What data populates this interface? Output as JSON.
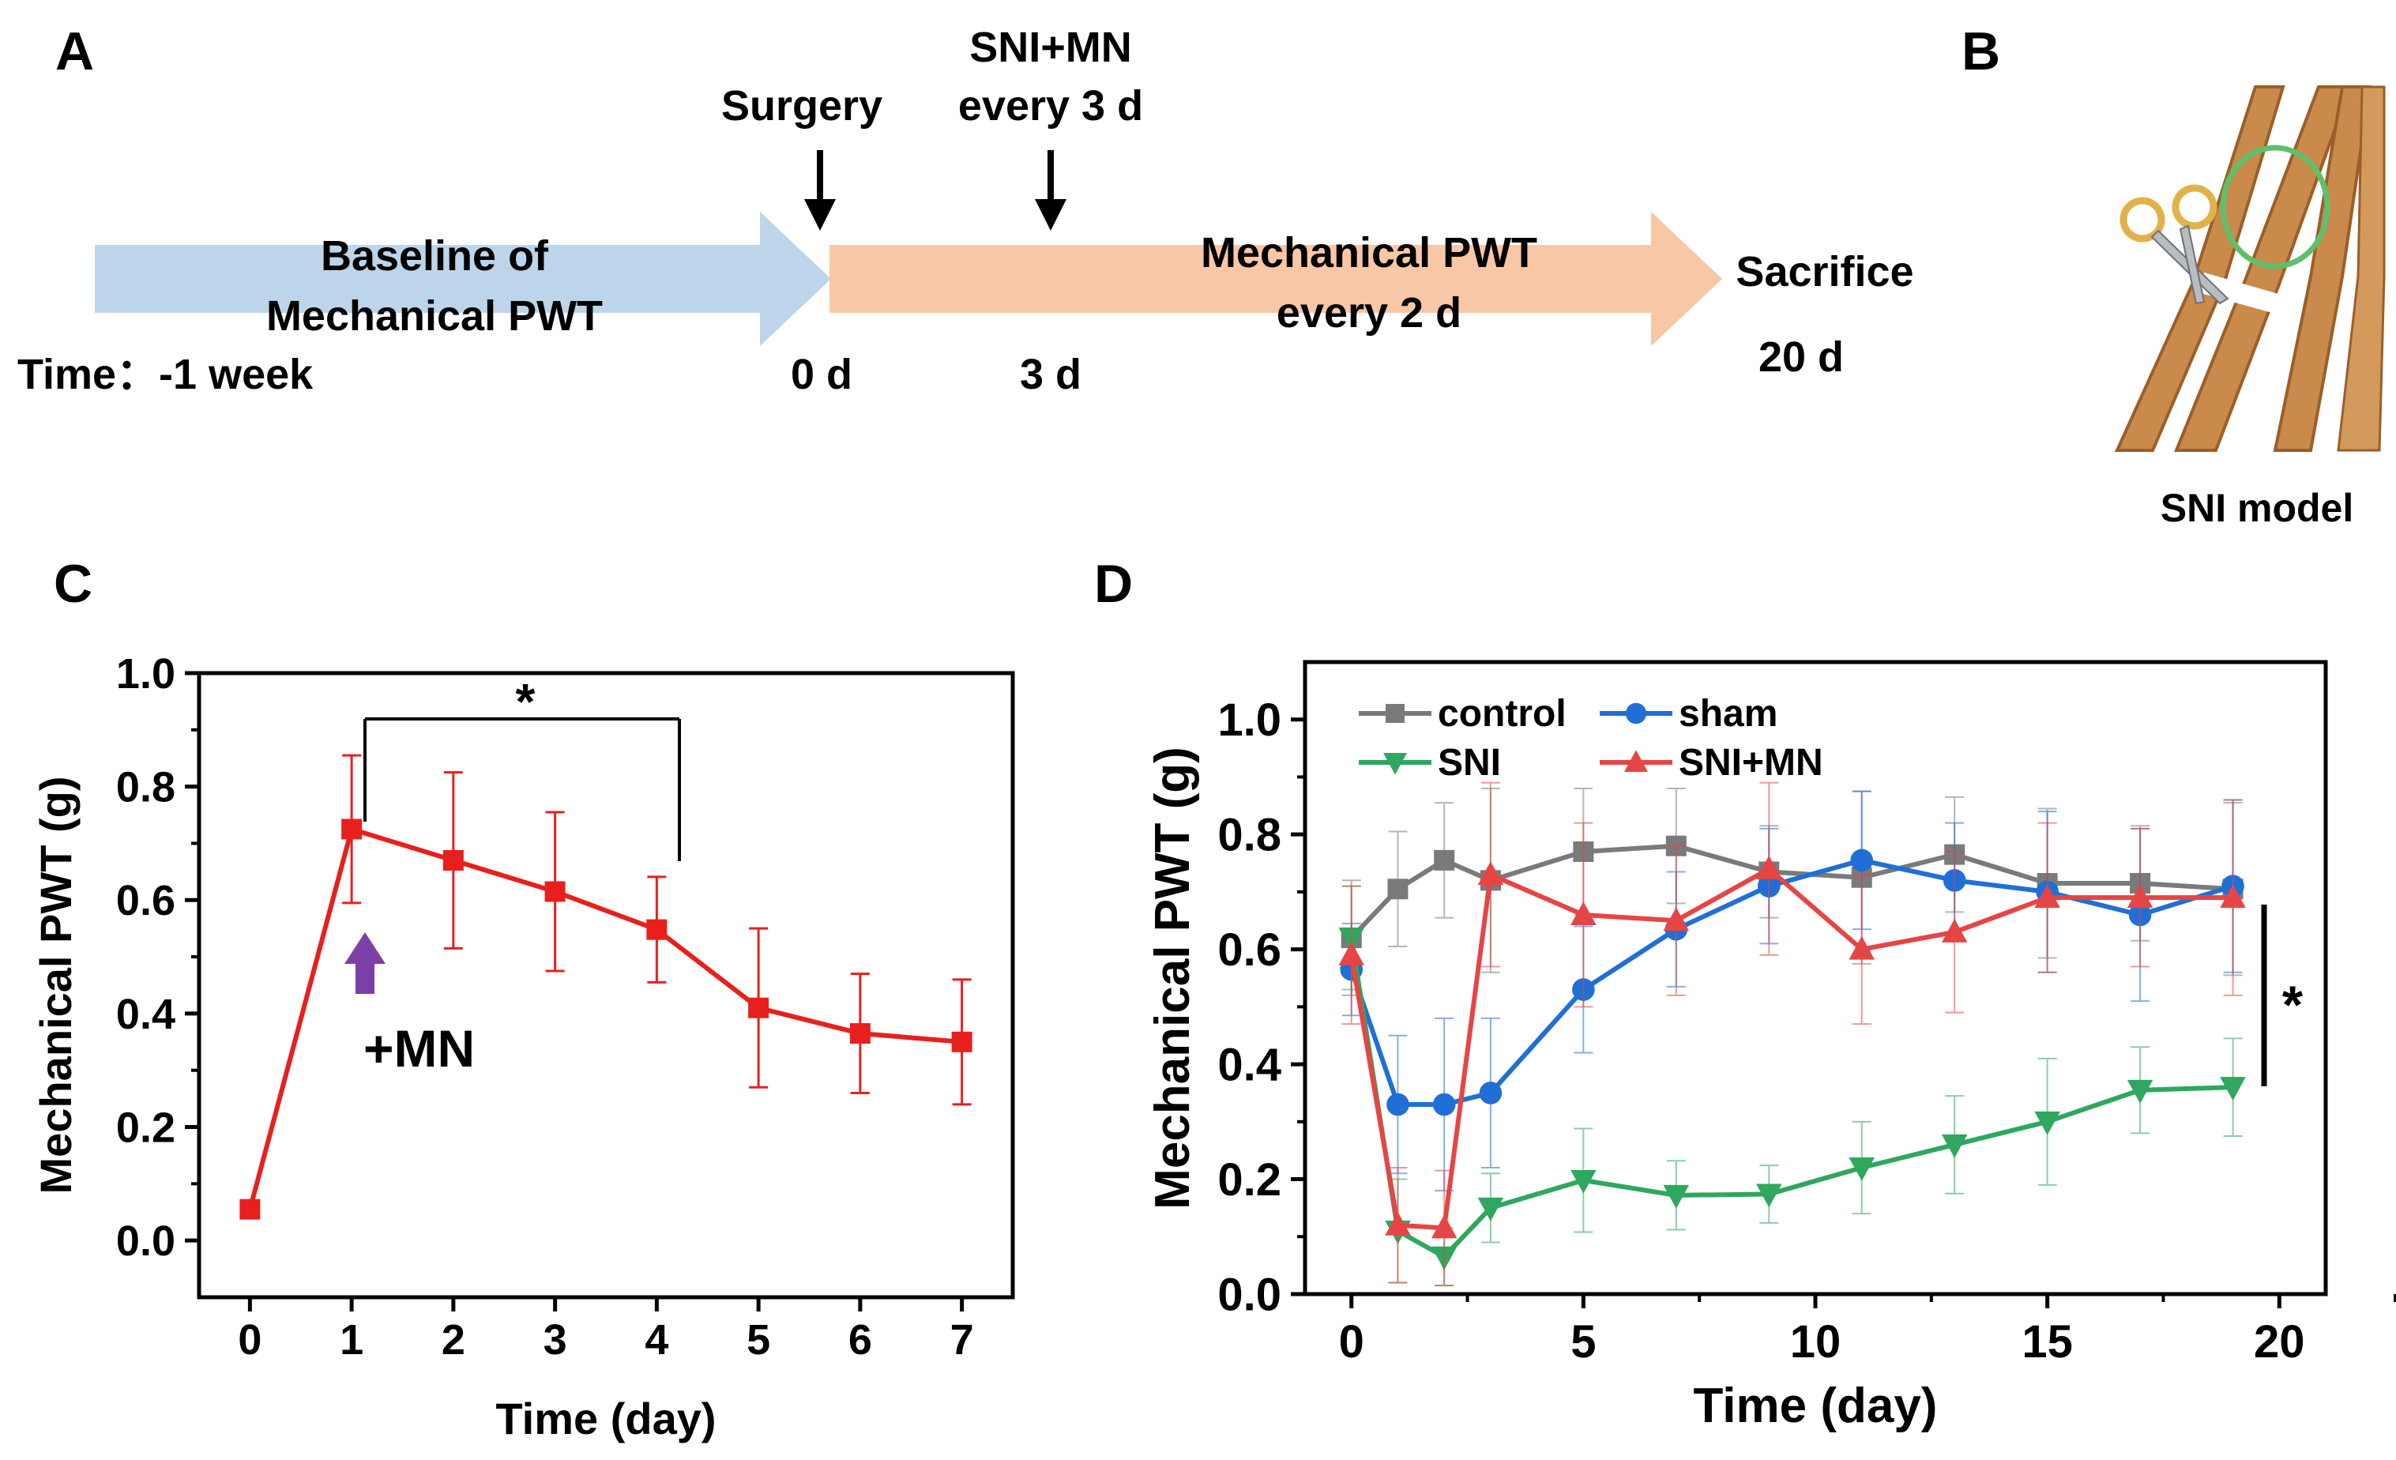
{
  "panels": {
    "a": "A",
    "b": "B",
    "c": "C",
    "d": "D"
  },
  "timeline": {
    "baseline_line1": "Baseline of",
    "baseline_line2": "Mechanical PWT",
    "surgery": "Surgery",
    "sni_mn_line1": "SNI+MN",
    "sni_mn_line2": "every 3 d",
    "pwt_line1": "Mechanical PWT",
    "pwt_line2": "every 2 d",
    "sacrifice": "Sacrifice",
    "time_label": "Time：-1 week",
    "t0": "0 d",
    "t3": "3 d",
    "t20": "20 d",
    "colors": {
      "baseline_arrow": "#bcd5ea",
      "treatment_arrow": "#f8c7a5"
    }
  },
  "model": {
    "label": "SNI model",
    "colors": {
      "nerve": "#c98a4b",
      "nerve_dark": "#9a5f2a",
      "loop": "#5fbf6a",
      "scissors": "#e2b24a"
    }
  },
  "chart_data": [
    {
      "type": "line",
      "panel": "C",
      "xlabel": "Time (day)",
      "ylabel": "Mechanical PWT (g)",
      "xlim": [
        -0.5,
        7.5
      ],
      "ylim": [
        -0.1,
        1.0
      ],
      "xticks": [
        "0",
        "1",
        "2",
        "3",
        "4",
        "5",
        "6",
        "7"
      ],
      "yticks": [
        "0.0",
        "0.2",
        "0.4",
        "0.6",
        "0.8",
        "1.0"
      ],
      "series": [
        {
          "name": "SNI+MN",
          "color": "#e8201d",
          "marker": "square",
          "x": [
            0,
            1,
            2,
            3,
            4,
            5,
            6,
            7
          ],
          "values": [
            0.055,
            0.725,
            0.67,
            0.615,
            0.548,
            0.41,
            0.365,
            0.35
          ],
          "errors": [
            0.01,
            0.13,
            0.155,
            0.14,
            0.093,
            0.14,
            0.105,
            0.11
          ]
        }
      ],
      "annotations": {
        "significance": "*",
        "significance_between": [
          1,
          4
        ],
        "arrow_label": "+MN",
        "arrow_color": "#7b3fa6",
        "arrow_at_day": 1
      }
    },
    {
      "type": "line",
      "panel": "D",
      "xlabel": "Time (day)",
      "ylabel": "Mechanical PWT (g)",
      "xlim": [
        -1,
        21
      ],
      "ylim": [
        0.0,
        1.1
      ],
      "xticks": [
        "0",
        "5",
        "10",
        "15",
        "20"
      ],
      "yticks": [
        "0.0",
        "0.2",
        "0.4",
        "0.6",
        "0.8",
        "1.0"
      ],
      "legend": "top-left",
      "significance": "*",
      "series": [
        {
          "name": "control",
          "color": "#7a7a7a",
          "marker": "square",
          "x": [
            0,
            1,
            2,
            3,
            5,
            7,
            9,
            11,
            13,
            15,
            17,
            19
          ],
          "values": [
            0.62,
            0.705,
            0.755,
            0.72,
            0.77,
            0.78,
            0.735,
            0.725,
            0.765,
            0.715,
            0.715,
            0.705
          ],
          "errors": [
            0.1,
            0.1,
            0.1,
            0.16,
            0.11,
            0.1,
            0.08,
            0.15,
            0.1,
            0.13,
            0.1,
            0.15
          ]
        },
        {
          "name": "sham",
          "color": "#1f6fd6",
          "marker": "circle",
          "x": [
            0,
            1,
            2,
            3,
            5,
            7,
            9,
            11,
            13,
            15,
            17,
            19
          ],
          "values": [
            0.565,
            0.33,
            0.33,
            0.35,
            0.53,
            0.635,
            0.71,
            0.755,
            0.72,
            0.7,
            0.66,
            0.71
          ],
          "errors": [
            0.08,
            0.12,
            0.15,
            0.13,
            0.11,
            0.1,
            0.1,
            0.12,
            0.1,
            0.14,
            0.15,
            0.15
          ]
        },
        {
          "name": "SNI",
          "color": "#2fa75f",
          "marker": "triangle-down",
          "x": [
            0,
            1,
            2,
            3,
            5,
            7,
            9,
            11,
            13,
            15,
            17,
            19
          ],
          "values": [
            0.62,
            0.11,
            0.065,
            0.15,
            0.198,
            0.172,
            0.174,
            0.22,
            0.26,
            0.3,
            0.355,
            0.36
          ],
          "errors": [
            0.09,
            0.09,
            0.05,
            0.06,
            0.09,
            0.06,
            0.05,
            0.08,
            0.085,
            0.11,
            0.075,
            0.085
          ]
        },
        {
          "name": "SNI+MN",
          "color": "#e64545",
          "marker": "triangle-up",
          "x": [
            0,
            1,
            2,
            3,
            5,
            7,
            9,
            11,
            13,
            15,
            17,
            19
          ],
          "values": [
            0.59,
            0.12,
            0.115,
            0.73,
            0.66,
            0.65,
            0.74,
            0.6,
            0.63,
            0.69,
            0.69,
            0.69
          ],
          "errors": [
            0.12,
            0.1,
            0.1,
            0.16,
            0.16,
            0.13,
            0.15,
            0.13,
            0.14,
            0.13,
            0.12,
            0.17
          ]
        }
      ]
    }
  ]
}
